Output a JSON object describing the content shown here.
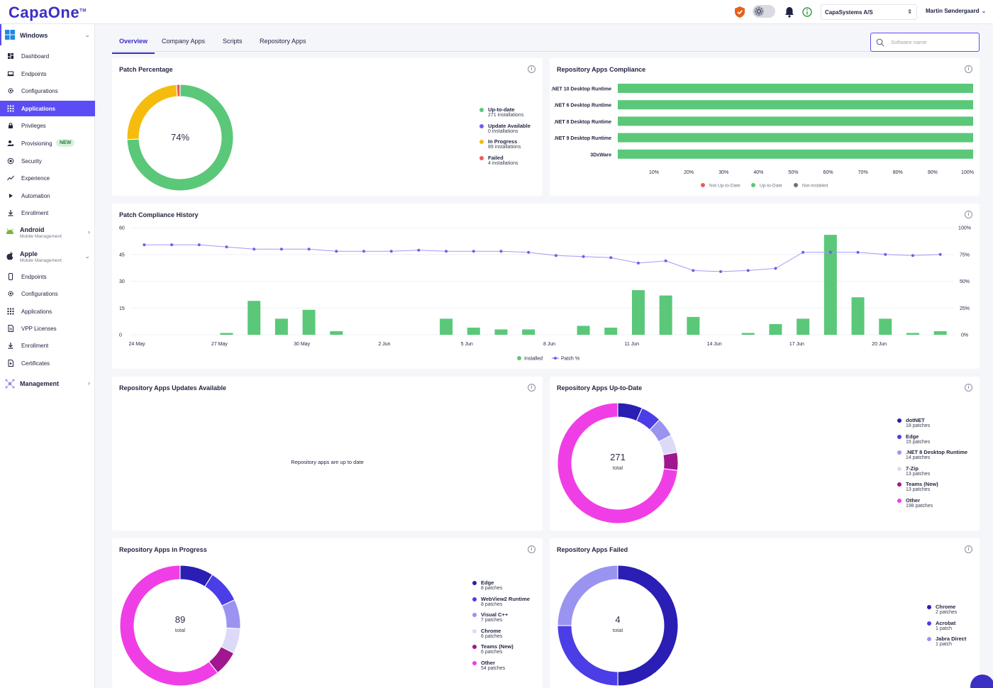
{
  "app": {
    "logo": "CapaOne",
    "logo_tm": "TM"
  },
  "topbar": {
    "company": "CapaSystems A/S",
    "user": "Martin Søndergaard"
  },
  "sidebar": {
    "windows": {
      "title": "Windows"
    },
    "windows_items": [
      {
        "label": "Dashboard",
        "icon": "dashboard-icon"
      },
      {
        "label": "Endpoints",
        "icon": "laptop-icon"
      },
      {
        "label": "Configurations",
        "icon": "gear-icon"
      },
      {
        "label": "Applications",
        "icon": "grid-icon"
      },
      {
        "label": "Privileges",
        "icon": "lock-icon"
      },
      {
        "label": "Provisioning",
        "icon": "user-gear-icon",
        "badge": "NEW"
      },
      {
        "label": "Security",
        "icon": "shield-icon"
      },
      {
        "label": "Experience",
        "icon": "trend-icon"
      },
      {
        "label": "Automation",
        "icon": "play-icon"
      },
      {
        "label": "Enrollment",
        "icon": "download-icon"
      }
    ],
    "android": {
      "title": "Android",
      "subtitle": "Mobile Management"
    },
    "apple": {
      "title": "Apple",
      "subtitle": "Mobile Management"
    },
    "apple_items": [
      {
        "label": "Endpoints",
        "icon": "phone-icon"
      },
      {
        "label": "Configurations",
        "icon": "gear-icon"
      },
      {
        "label": "Applications",
        "icon": "grid-icon"
      },
      {
        "label": "VPP Licenses",
        "icon": "document-icon"
      },
      {
        "label": "Enrollment",
        "icon": "download-icon"
      },
      {
        "label": "Certificates",
        "icon": "certificate-icon"
      }
    ],
    "management": {
      "title": "Management"
    }
  },
  "tabs": [
    "Overview",
    "Company Apps",
    "Scripts",
    "Repository Apps"
  ],
  "search": {
    "placeholder": "Software name"
  },
  "patch_percentage": {
    "title": "Patch Percentage",
    "center": "74%",
    "legend": [
      {
        "name": "Up-to-date",
        "sub": "271 installations",
        "color": "#5ac878"
      },
      {
        "name": "Update Available",
        "sub": "0 installations",
        "color": "#6b61e8"
      },
      {
        "name": "In Progress",
        "sub": "89 installations",
        "color": "#f5bc0e"
      },
      {
        "name": "Failed",
        "sub": "4 installations",
        "color": "#ef5b5b"
      }
    ]
  },
  "compliance": {
    "title": "Repository Apps Compliance",
    "legend": [
      "Not Up-to-Date",
      "Up-to-Date",
      "Not-installed"
    ],
    "legend_colors": [
      "#ef5b5b",
      "#5ac878",
      "#6b6f80"
    ]
  },
  "history": {
    "title": "Patch Compliance History",
    "legend": [
      "Installed",
      "Patch %"
    ]
  },
  "updates_available": {
    "title": "Repository Apps Updates Available",
    "message": "Repository apps are up to date"
  },
  "up_to_date": {
    "title": "Repository Apps Up-to-Date",
    "total": "271",
    "total_label": "total",
    "legend": [
      {
        "name": "dotNET",
        "sub": "18 patches",
        "color": "#2a1eb4"
      },
      {
        "name": "Edge",
        "sub": "15 patches",
        "color": "#4b3ee6"
      },
      {
        "name": ".NET 8 Desktop Runtime",
        "sub": "14 patches",
        "color": "#9a94f0"
      },
      {
        "name": "7-Zip",
        "sub": "13 patches",
        "color": "#dcdaf8"
      },
      {
        "name": "Teams (New)",
        "sub": "13 patches",
        "color": "#a0178f"
      },
      {
        "name": "Other",
        "sub": "198 patches",
        "color": "#f03ee6"
      }
    ]
  },
  "in_progress": {
    "title": "Repository Apps in Progress",
    "total": "89",
    "total_label": "total",
    "legend": [
      {
        "name": "Edge",
        "sub": "8 patches",
        "color": "#2a1eb4"
      },
      {
        "name": "WebView2 Runtime",
        "sub": "8 patches",
        "color": "#4b3ee6"
      },
      {
        "name": "Visual C++",
        "sub": "7 patches",
        "color": "#9a94f0"
      },
      {
        "name": "Chrome",
        "sub": "6 patches",
        "color": "#dcdaf8"
      },
      {
        "name": "Teams (New)",
        "sub": "6 patches",
        "color": "#a0178f"
      },
      {
        "name": "Other",
        "sub": "54 patches",
        "color": "#f03ee6"
      }
    ]
  },
  "failed": {
    "title": "Repository Apps Failed",
    "total": "4",
    "total_label": "total",
    "legend": [
      {
        "name": "Chrome",
        "sub": "2 patches",
        "color": "#2a1eb4"
      },
      {
        "name": "Acrobat",
        "sub": "1 patch",
        "color": "#4b3ee6"
      },
      {
        "name": "Jabra Direct",
        "sub": "1 patch",
        "color": "#9a94f0"
      }
    ]
  },
  "chart_data": [
    {
      "type": "pie",
      "title": "Patch Percentage",
      "categories": [
        "Up-to-date",
        "Update Available",
        "In Progress",
        "Failed"
      ],
      "values": [
        271,
        0,
        89,
        4
      ]
    },
    {
      "type": "bar",
      "title": "Repository Apps Compliance",
      "categories": [
        ".NET 10 Desktop Runtime",
        ".NET 6 Desktop Runtime",
        ".NET 8 Desktop Runtime",
        ".NET 9 Desktop Runtime",
        "3DxWare"
      ],
      "series": [
        {
          "name": "Up-to-Date",
          "values": [
            100,
            100,
            100,
            100,
            100
          ]
        }
      ],
      "xticks": [
        "10%",
        "20%",
        "30%",
        "40%",
        "50%",
        "60%",
        "70%",
        "80%",
        "90%",
        "100%"
      ],
      "xlim": [
        0,
        100
      ]
    },
    {
      "type": "bar",
      "title": "Patch Compliance History",
      "xticks": [
        "24 May",
        "27 May",
        "30 May",
        "2 Jun",
        "5 Jun",
        "8 Jun",
        "11 Jun",
        "14 Jun",
        "17 Jun",
        "20 Jun"
      ],
      "yticks_left": [
        "0",
        "15",
        "30",
        "45",
        "60"
      ],
      "yticks_right": [
        "0%",
        "25%",
        "50%",
        "75%",
        "100%"
      ],
      "ylim": [
        0,
        60
      ],
      "y2lim": [
        0,
        100
      ],
      "series": [
        {
          "name": "Installed",
          "values": [
            0,
            0,
            0,
            1,
            19,
            9,
            14,
            2,
            0,
            0,
            0,
            9,
            4,
            3,
            3,
            0,
            5,
            4,
            25,
            22,
            10,
            0,
            1,
            6,
            9,
            56,
            21,
            9,
            1,
            2
          ]
        },
        {
          "name": "Patch %",
          "values": [
            84,
            84,
            84,
            82,
            80,
            80,
            80,
            78,
            78,
            78,
            79,
            78,
            78,
            78,
            77,
            74,
            73,
            72,
            67,
            69,
            60,
            59,
            60,
            62,
            77,
            77,
            77,
            75,
            74,
            75
          ]
        }
      ]
    },
    {
      "type": "pie",
      "title": "Repository Apps Up-to-Date",
      "categories": [
        "dotNET",
        "Edge",
        ".NET 8 Desktop Runtime",
        "7-Zip",
        "Teams (New)",
        "Other"
      ],
      "values": [
        18,
        15,
        14,
        13,
        13,
        198
      ]
    },
    {
      "type": "pie",
      "title": "Repository Apps in Progress",
      "categories": [
        "Edge",
        "WebView2 Runtime",
        "Visual C++",
        "Chrome",
        "Teams (New)",
        "Other"
      ],
      "values": [
        8,
        8,
        7,
        6,
        6,
        54
      ]
    },
    {
      "type": "pie",
      "title": "Repository Apps Failed",
      "categories": [
        "Chrome",
        "Acrobat",
        "Jabra Direct"
      ],
      "values": [
        2,
        1,
        1
      ]
    }
  ]
}
